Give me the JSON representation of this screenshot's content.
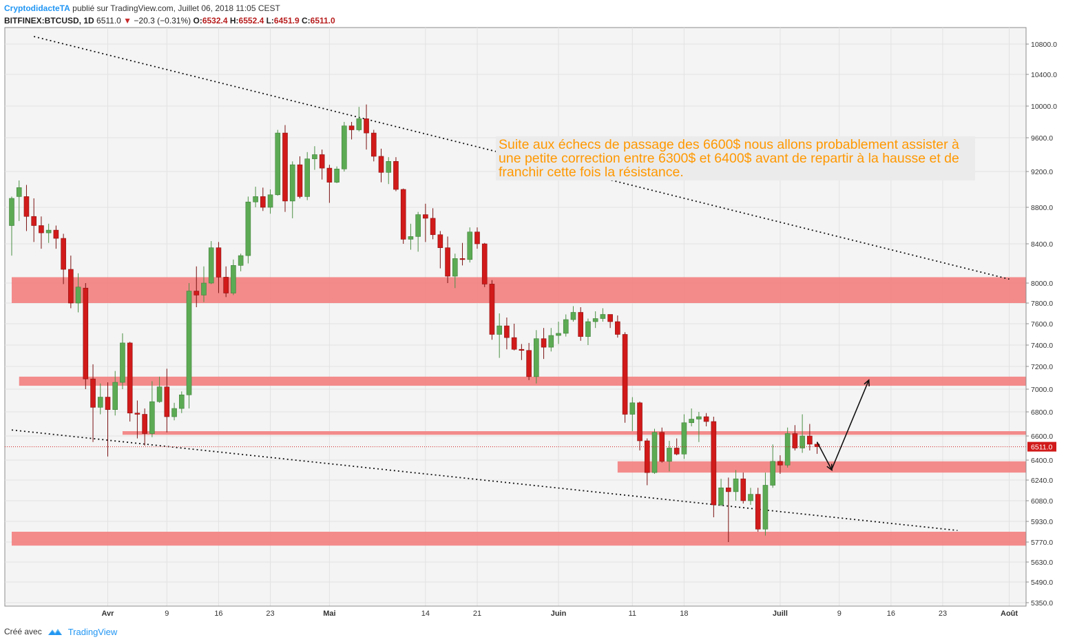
{
  "header": {
    "author": "CryptodidacteTA",
    "publish_text": "publié sur TradingView.com, Juillet 06, 2018 11:05 CEST",
    "symbol": "BITFINEX:BTCUSD, 1D",
    "last": "6511.0",
    "change": "−20.3 (−0.31%)",
    "o_label": "O:",
    "o_value": "6532.4",
    "h_label": "H:",
    "h_value": "6552.4",
    "l_label": "L:",
    "l_value": "6451.9",
    "c_label": "C:",
    "c_value": "6511.0"
  },
  "footer": {
    "created_with": "Créé avec",
    "brand": "TradingView"
  },
  "annotation": {
    "text": "Suite aux échecs de passage des 6600$ nous allons probablement assister à une petite correction entre 6300$ et 6400$ avant de repartir à la hausse et de franchir cette fois la résistance."
  },
  "colors": {
    "up": "#5cab54",
    "down": "#d11a1a",
    "zone": "#f37f7f",
    "annotation": "#ff9800",
    "accent": "#2196f3"
  },
  "chart_data": {
    "type": "candlestick",
    "y_ticks": [
      "5350.0",
      "5490.0",
      "5630.0",
      "5770.0",
      "5930.0",
      "6080.0",
      "6240.0",
      "6400.0",
      "6600.0",
      "6800.0",
      "7000.0",
      "7200.0",
      "7400.0",
      "7600.0",
      "7800.0",
      "8000.0",
      "8400.0",
      "8800.0",
      "9200.0",
      "9600.0",
      "10000.0",
      "10400.0",
      "10800.0"
    ],
    "last_price_label": "6511.0",
    "last_price": 6511.0,
    "x_start_date": "2018-03-19",
    "x_ticks": [
      {
        "label": "Avr",
        "date": "2018-04-01"
      },
      {
        "label": "9",
        "date": "2018-04-09"
      },
      {
        "label": "16",
        "date": "2018-04-16"
      },
      {
        "label": "23",
        "date": "2018-04-23"
      },
      {
        "label": "Mai",
        "date": "2018-05-01"
      },
      {
        "label": "14",
        "date": "2018-05-14"
      },
      {
        "label": "21",
        "date": "2018-05-21"
      },
      {
        "label": "Juin",
        "date": "2018-06-01"
      },
      {
        "label": "11",
        "date": "2018-06-11"
      },
      {
        "label": "18",
        "date": "2018-06-18"
      },
      {
        "label": "Juill",
        "date": "2018-07-01"
      },
      {
        "label": "9",
        "date": "2018-07-09"
      },
      {
        "label": "16",
        "date": "2018-07-16"
      },
      {
        "label": "23",
        "date": "2018-07-23"
      },
      {
        "label": "Août",
        "date": "2018-08-01"
      }
    ],
    "zones": [
      {
        "from_date": "2018-03-19",
        "to_date": "2018-08-06",
        "low": 7800,
        "high": 8060
      },
      {
        "from_date": "2018-03-20",
        "to_date": "2018-08-06",
        "low": 7030,
        "high": 7110
      },
      {
        "from_date": "2018-04-03",
        "to_date": "2018-08-06",
        "low": 6610,
        "high": 6640
      },
      {
        "from_date": "2018-06-09",
        "to_date": "2018-08-06",
        "low": 6300,
        "high": 6390
      },
      {
        "from_date": "2018-03-19",
        "to_date": "2018-08-06",
        "low": 5745,
        "high": 5850
      }
    ],
    "trendlines": [
      {
        "from_date": "2018-03-22",
        "from_price": 10900,
        "to_date": "2018-08-01",
        "to_price": 8040
      },
      {
        "from_date": "2018-03-19",
        "from_price": 6650,
        "to_date": "2018-07-25",
        "to_price": 5860
      }
    ],
    "arrows": [
      {
        "from_date": "2018-07-06",
        "from_price": 6550,
        "to_date": "2018-07-08",
        "to_price": 6320
      },
      {
        "from_date": "2018-07-08",
        "from_price": 6330,
        "to_date": "2018-07-13",
        "to_price": 7080
      }
    ],
    "candles": [
      [
        "2018-03-19",
        8600,
        8900,
        8280,
        8920
      ],
      [
        "2018-03-20",
        8920,
        9020,
        8650,
        9100
      ],
      [
        "2018-03-21",
        8920,
        8700,
        8540,
        9050
      ],
      [
        "2018-03-22",
        8700,
        8600,
        8420,
        8900
      ],
      [
        "2018-03-23",
        8600,
        8520,
        8350,
        8700
      ],
      [
        "2018-03-24",
        8520,
        8550,
        8410,
        8620
      ],
      [
        "2018-03-25",
        8550,
        8460,
        8350,
        8600
      ],
      [
        "2018-03-26",
        8460,
        8140,
        7990,
        8510
      ],
      [
        "2018-03-27",
        8140,
        7800,
        7750,
        8280
      ],
      [
        "2018-03-28",
        7800,
        7960,
        7710,
        8100
      ],
      [
        "2018-03-29",
        7950,
        7090,
        7000,
        8000
      ],
      [
        "2018-03-30",
        7090,
        6840,
        6550,
        7220
      ],
      [
        "2018-03-31",
        6840,
        6930,
        6780,
        7050
      ],
      [
        "2018-04-01",
        6930,
        6820,
        6430,
        7060
      ],
      [
        "2018-04-02",
        6820,
        7060,
        6770,
        7160
      ],
      [
        "2018-04-03",
        7060,
        7420,
        7000,
        7510
      ],
      [
        "2018-04-04",
        7420,
        6790,
        6720,
        7430
      ],
      [
        "2018-04-05",
        6790,
        6780,
        6580,
        6900
      ],
      [
        "2018-04-06",
        6780,
        6620,
        6520,
        6830
      ],
      [
        "2018-04-07",
        6620,
        6890,
        6590,
        7070
      ],
      [
        "2018-04-08",
        6890,
        7020,
        6880,
        7110
      ],
      [
        "2018-04-09",
        7020,
        6760,
        6630,
        7180
      ],
      [
        "2018-04-10",
        6760,
        6830,
        6730,
        6880
      ],
      [
        "2018-04-11",
        6830,
        6950,
        6790,
        6980
      ],
      [
        "2018-04-12",
        6950,
        7920,
        6830,
        8000
      ],
      [
        "2018-04-13",
        7920,
        7880,
        7760,
        8170
      ],
      [
        "2018-04-14",
        7880,
        8000,
        7810,
        8170
      ],
      [
        "2018-04-15",
        8000,
        8360,
        7990,
        8430
      ],
      [
        "2018-04-16",
        8360,
        8060,
        7900,
        8420
      ],
      [
        "2018-04-17",
        8060,
        7900,
        7860,
        8170
      ],
      [
        "2018-04-18",
        7900,
        8180,
        7880,
        8240
      ],
      [
        "2018-04-19",
        8180,
        8280,
        8120,
        8300
      ],
      [
        "2018-04-20",
        8280,
        8860,
        8200,
        8920
      ],
      [
        "2018-04-21",
        8860,
        8920,
        8800,
        9030
      ],
      [
        "2018-04-22",
        8920,
        8800,
        8760,
        9020
      ],
      [
        "2018-04-23",
        8800,
        8940,
        8730,
        9000
      ],
      [
        "2018-04-24",
        8940,
        9660,
        8930,
        9700
      ],
      [
        "2018-04-25",
        9660,
        8870,
        8750,
        9760
      ],
      [
        "2018-04-26",
        8870,
        9280,
        8680,
        9320
      ],
      [
        "2018-04-27",
        9280,
        8920,
        8900,
        9380
      ],
      [
        "2018-04-28",
        8920,
        9350,
        8880,
        9430
      ],
      [
        "2018-04-29",
        9350,
        9400,
        9220,
        9500
      ],
      [
        "2018-04-30",
        9400,
        9240,
        9110,
        9460
      ],
      [
        "2018-05-01",
        9240,
        9080,
        8850,
        9280
      ],
      [
        "2018-05-02",
        9080,
        9230,
        9070,
        9260
      ],
      [
        "2018-05-03",
        9230,
        9750,
        9200,
        9800
      ],
      [
        "2018-05-04",
        9750,
        9700,
        9580,
        9800
      ],
      [
        "2018-05-05",
        9700,
        9840,
        9680,
        9990
      ],
      [
        "2018-05-06",
        9840,
        9660,
        9460,
        10020
      ],
      [
        "2018-05-07",
        9660,
        9380,
        9320,
        9700
      ],
      [
        "2018-05-08",
        9380,
        9190,
        9080,
        9470
      ],
      [
        "2018-05-09",
        9190,
        9320,
        9060,
        9370
      ],
      [
        "2018-05-10",
        9320,
        9000,
        8980,
        9370
      ],
      [
        "2018-05-11",
        9000,
        8450,
        8400,
        9010
      ],
      [
        "2018-05-12",
        8450,
        8480,
        8340,
        8620
      ],
      [
        "2018-05-13",
        8480,
        8720,
        8320,
        8750
      ],
      [
        "2018-05-14",
        8720,
        8680,
        8420,
        8840
      ],
      [
        "2018-05-15",
        8680,
        8500,
        8450,
        8790
      ],
      [
        "2018-05-16",
        8500,
        8360,
        8150,
        8540
      ],
      [
        "2018-05-17",
        8360,
        8070,
        8000,
        8480
      ],
      [
        "2018-05-18",
        8070,
        8250,
        7950,
        8300
      ],
      [
        "2018-05-19",
        8250,
        8240,
        8180,
        8410
      ],
      [
        "2018-05-20",
        8240,
        8530,
        8210,
        8580
      ],
      [
        "2018-05-21",
        8530,
        8400,
        8350,
        8580
      ],
      [
        "2018-05-22",
        8400,
        7990,
        7960,
        8410
      ],
      [
        "2018-05-23",
        7990,
        7500,
        7450,
        8030
      ],
      [
        "2018-05-24",
        7500,
        7580,
        7280,
        7700
      ],
      [
        "2018-05-25",
        7580,
        7470,
        7360,
        7660
      ],
      [
        "2018-05-26",
        7470,
        7360,
        7350,
        7600
      ],
      [
        "2018-05-27",
        7360,
        7350,
        7260,
        7410
      ],
      [
        "2018-05-28",
        7350,
        7110,
        7080,
        7420
      ],
      [
        "2018-05-29",
        7110,
        7460,
        7050,
        7540
      ],
      [
        "2018-05-30",
        7460,
        7380,
        7270,
        7560
      ],
      [
        "2018-05-31",
        7380,
        7490,
        7340,
        7560
      ],
      [
        "2018-06-01",
        7490,
        7510,
        7410,
        7620
      ],
      [
        "2018-06-02",
        7510,
        7640,
        7480,
        7690
      ],
      [
        "2018-06-03",
        7640,
        7710,
        7620,
        7770
      ],
      [
        "2018-06-04",
        7710,
        7480,
        7440,
        7760
      ],
      [
        "2018-06-05",
        7480,
        7620,
        7400,
        7650
      ],
      [
        "2018-06-06",
        7620,
        7650,
        7560,
        7720
      ],
      [
        "2018-06-07",
        7650,
        7690,
        7620,
        7750
      ],
      [
        "2018-06-08",
        7690,
        7620,
        7560,
        7690
      ],
      [
        "2018-06-09",
        7620,
        7500,
        7470,
        7680
      ],
      [
        "2018-06-10",
        7500,
        6780,
        6710,
        7520
      ],
      [
        "2018-06-11",
        6780,
        6880,
        6640,
        6930
      ],
      [
        "2018-06-12",
        6880,
        6560,
        6480,
        6890
      ],
      [
        "2018-06-13",
        6560,
        6300,
        6200,
        6580
      ],
      [
        "2018-06-14",
        6300,
        6630,
        6290,
        6660
      ],
      [
        "2018-06-15",
        6630,
        6390,
        6380,
        6670
      ],
      [
        "2018-06-16",
        6390,
        6500,
        6310,
        6560
      ],
      [
        "2018-06-17",
        6500,
        6450,
        6440,
        6580
      ],
      [
        "2018-06-18",
        6450,
        6710,
        6410,
        6780
      ],
      [
        "2018-06-19",
        6710,
        6740,
        6680,
        6830
      ],
      [
        "2018-06-20",
        6740,
        6760,
        6550,
        6800
      ],
      [
        "2018-06-21",
        6760,
        6720,
        6680,
        6790
      ],
      [
        "2018-06-22",
        6720,
        6050,
        5960,
        6760
      ],
      [
        "2018-06-23",
        6050,
        6180,
        6040,
        6250
      ],
      [
        "2018-06-24",
        6180,
        6150,
        5770,
        6260
      ],
      [
        "2018-06-25",
        6150,
        6250,
        6080,
        6320
      ],
      [
        "2018-06-26",
        6250,
        6080,
        6060,
        6300
      ],
      [
        "2018-06-27",
        6080,
        6130,
        6050,
        6180
      ],
      [
        "2018-06-28",
        6130,
        5870,
        5850,
        6180
      ],
      [
        "2018-06-29",
        5870,
        6200,
        5820,
        6300
      ],
      [
        "2018-06-30",
        6200,
        6390,
        6180,
        6530
      ],
      [
        "2018-07-01",
        6390,
        6360,
        6290,
        6440
      ],
      [
        "2018-07-02",
        6360,
        6620,
        6340,
        6670
      ],
      [
        "2018-07-03",
        6620,
        6500,
        6480,
        6690
      ],
      [
        "2018-07-04",
        6500,
        6600,
        6460,
        6780
      ],
      [
        "2018-07-05",
        6600,
        6532,
        6480,
        6700
      ],
      [
        "2018-07-06",
        6532,
        6511,
        6452,
        6552
      ]
    ]
  }
}
